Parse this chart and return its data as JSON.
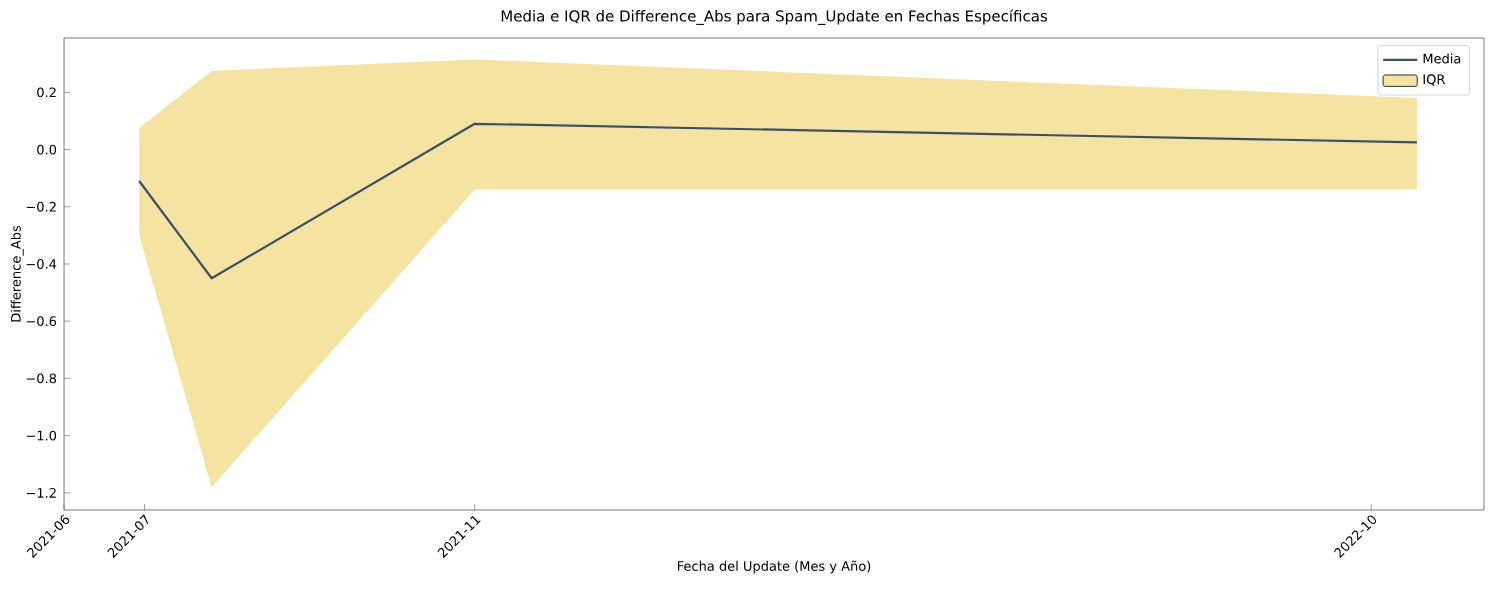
{
  "chart_data": {
    "type": "line",
    "title": "Media e IQR de Difference_Abs para Spam_Update en Fechas Específicas",
    "xlabel": "Fecha del Update (Mes y Año)",
    "ylabel": "Difference_Abs",
    "x": [
      "2021-06-29",
      "2021-07-26",
      "2021-11-01",
      "2022-10-18"
    ],
    "series": [
      {
        "name": "Media",
        "color": "#3b5068",
        "values": [
          -0.11,
          -0.45,
          0.09,
          0.025
        ],
        "lower": [
          -0.3,
          -1.18,
          -0.14,
          -0.14
        ],
        "upper": [
          0.075,
          0.275,
          0.315,
          0.18
        ]
      },
      {
        "name": "IQR",
        "type": "area",
        "color": "#f5e3a1",
        "values": [
          null,
          null,
          null,
          null
        ]
      }
    ],
    "xlim": [
      "2021-06-01",
      "2022-11-12"
    ],
    "ylim": [
      -1.26,
      0.39
    ],
    "xticks": [
      "2021-06",
      "2021-07",
      "2021-11",
      "2022-10"
    ],
    "yticks": [
      {
        "value": -1.2,
        "label": "−1.2"
      },
      {
        "value": -1.0,
        "label": "−1.0"
      },
      {
        "value": -0.8,
        "label": "−0.8"
      },
      {
        "value": -0.6,
        "label": "−0.6"
      },
      {
        "value": -0.4,
        "label": "−0.4"
      },
      {
        "value": -0.2,
        "label": "−0.2"
      },
      {
        "value": 0.0,
        "label": "0.0"
      },
      {
        "value": 0.2,
        "label": "0.2"
      }
    ],
    "grid": false,
    "legend": "top right"
  }
}
